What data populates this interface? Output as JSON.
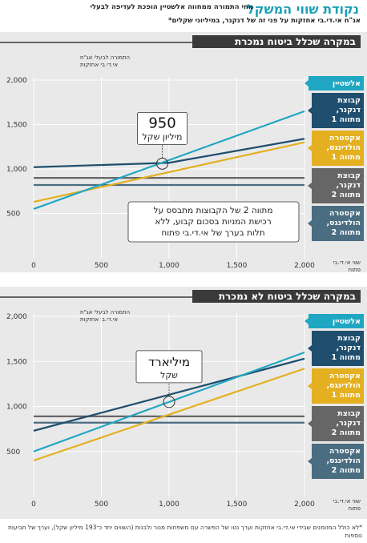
{
  "header": {
    "title": "נקודת שווי המשקל",
    "subtitle": "מחי התמורה ממחווה אלשטיין הופכת לעדיפה לבעלי",
    "subtitle2": "אג\"ח אי.די.בי אחזקות על פני זה של דנקנר, במיליוני שקלים*"
  },
  "footer": {
    "note": "*לא כולל המזומנים שבידי אי.די.בי אחזקות וערך נטו של הפשרה עם משפחות מנור ולבנות (השווים יחד כ־193 מיליון שקל), וערך של תביעות נוספות"
  },
  "colors": {
    "elshtein": "#1fa6c2",
    "dankner": "#1f4e6e",
    "extra": "#e4b020",
    "dankner2": "#666666",
    "extra2": "#4a6d82"
  },
  "chart_data": [
    {
      "type": "line",
      "title": "במקרה שכלל ביטוח נמכרת",
      "ylabel": "התמורה לבעלי אג\"ח אי.די.בי אחזקות",
      "xlabel": "שווי אי.די.בי פתוח",
      "xlim": [
        0,
        2000
      ],
      "ylim": [
        0,
        2000
      ],
      "xticks": [
        "0",
        "500",
        "1,000",
        "1,500",
        "2,000"
      ],
      "yticks": [
        "500",
        "1,000",
        "1,500",
        "2,000"
      ],
      "series": [
        {
          "name": "אלשטיין",
          "x": [
            0,
            2000
          ],
          "y": [
            550,
            1650
          ]
        },
        {
          "name": "קבוצת דנקנר, מתווה 1",
          "x": [
            0,
            1000,
            2000
          ],
          "y": [
            1020,
            1070,
            1340
          ]
        },
        {
          "name": "אקסטרה הולדינגס, מתווה 1",
          "x": [
            0,
            2000
          ],
          "y": [
            630,
            1300
          ]
        },
        {
          "name": "קבוצת דנקנר, מתווה 2",
          "x": [
            0,
            2000
          ],
          "y": [
            900,
            900
          ]
        },
        {
          "name": "אקסטרה הולדינגס, מתווה 2",
          "x": [
            0,
            2000
          ],
          "y": [
            820,
            820
          ]
        }
      ],
      "callout": {
        "value": "950",
        "unit": "מיליון שקל",
        "x": 950,
        "y": 1060
      },
      "annotation": [
        "מתווה 2 של הקבוצות מתבסס על",
        "רכישת המניות בסכום קבוע, ללא",
        "תלות בערך של אי.די.בי פתוח"
      ]
    },
    {
      "type": "line",
      "title": "במקרה שכלל ביטוח לא נמכרת",
      "ylabel": "התמורה לבעלי אג\"ח אי.די.בי אחזקות",
      "xlabel": "שווי אי.די.בי פתוח",
      "xlim": [
        0,
        2000
      ],
      "ylim": [
        0,
        2000
      ],
      "xticks": [
        "0",
        "500",
        "1,000",
        "1,500",
        "2,000"
      ],
      "yticks": [
        "500",
        "1,000",
        "1,500",
        "2,000"
      ],
      "series": [
        {
          "name": "אלשטיין",
          "x": [
            0,
            2000
          ],
          "y": [
            500,
            1600
          ]
        },
        {
          "name": "קבוצת דנקנר, מתווה 1",
          "x": [
            0,
            2000
          ],
          "y": [
            730,
            1530
          ]
        },
        {
          "name": "אקסטרה הולדינגס, מתווה 1",
          "x": [
            0,
            2000
          ],
          "y": [
            400,
            1420
          ]
        },
        {
          "name": "קבוצת דנקנר, מתווה 2",
          "x": [
            0,
            2000
          ],
          "y": [
            890,
            890
          ]
        },
        {
          "name": "אקסטרה הולדינגס, מתווה 2",
          "x": [
            0,
            2000
          ],
          "y": [
            820,
            820
          ]
        }
      ],
      "callout": {
        "value": "מיליארד",
        "unit": "שקל",
        "x": 1000,
        "y": 1050
      }
    }
  ],
  "legend": [
    {
      "label": "אלשטיין",
      "color": "#1fa6c2"
    },
    {
      "label": "קבוצת דנקנר, מתווה 1",
      "color": "#1f4e6e"
    },
    {
      "label": "אקסטרה הולדינגס, מתווה 1",
      "color": "#e4b020"
    },
    {
      "label": "קבוצת דנקנר, מתווה 2",
      "color": "#666666"
    },
    {
      "label": "אקסטרה הולדינגס, מתווה 2",
      "color": "#4a6d82"
    }
  ]
}
